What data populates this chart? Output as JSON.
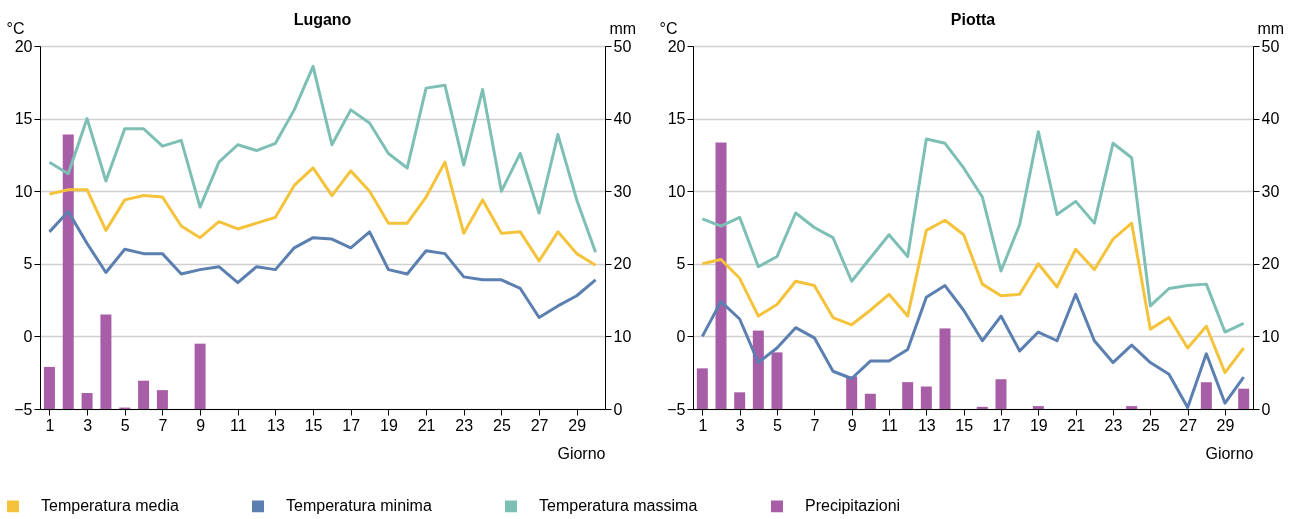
{
  "chart_data": [
    {
      "type": "line",
      "title": "Lugano",
      "xlabel": "Giorno",
      "ylabel": "°C",
      "y2label": "mm",
      "x": [
        1,
        2,
        3,
        4,
        5,
        6,
        7,
        8,
        9,
        10,
        11,
        12,
        13,
        14,
        15,
        16,
        17,
        18,
        19,
        20,
        21,
        22,
        23,
        24,
        25,
        26,
        27,
        28,
        29,
        30
      ],
      "xlim": [
        0.5,
        30.5
      ],
      "xticks": [
        1,
        3,
        5,
        7,
        9,
        11,
        13,
        15,
        17,
        19,
        21,
        23,
        25,
        27,
        29
      ],
      "ylim": [
        -5,
        20
      ],
      "yticks": [
        -5,
        0,
        5,
        10,
        15,
        20
      ],
      "y2lim": [
        0,
        50
      ],
      "y2ticks": [
        0,
        10,
        20,
        30,
        40,
        50
      ],
      "grid": "y",
      "legend": "bottom",
      "series": [
        {
          "name": "Temperatura media",
          "color": "#f5c33b",
          "values": [
            9.8,
            10.1,
            10.1,
            7.3,
            9.4,
            9.7,
            9.6,
            7.6,
            6.8,
            7.9,
            7.4,
            7.8,
            8.2,
            10.4,
            11.6,
            9.7,
            11.4,
            10.0,
            7.8,
            7.8,
            9.6,
            12.0,
            7.1,
            9.4,
            7.1,
            7.2,
            5.2,
            7.2,
            5.7,
            4.9
          ]
        },
        {
          "name": "Temperatura minima",
          "color": "#5b7fb0",
          "values": [
            7.2,
            8.6,
            6.4,
            4.4,
            6.0,
            5.7,
            5.7,
            4.3,
            4.6,
            4.8,
            3.7,
            4.8,
            4.6,
            6.1,
            6.8,
            6.7,
            6.1,
            7.2,
            4.6,
            4.3,
            5.9,
            5.7,
            4.1,
            3.9,
            3.9,
            3.3,
            1.3,
            2.1,
            2.8,
            3.9
          ]
        },
        {
          "name": "Temperatura massima",
          "color": "#7ebfb5",
          "values": [
            12.0,
            11.2,
            15.0,
            10.7,
            14.3,
            14.3,
            13.1,
            13.5,
            8.9,
            12.0,
            13.2,
            12.8,
            13.3,
            15.6,
            18.6,
            13.2,
            15.6,
            14.7,
            12.6,
            11.6,
            17.1,
            17.3,
            11.8,
            17.0,
            10.0,
            12.6,
            8.5,
            13.9,
            9.4,
            5.8
          ]
        },
        {
          "name": "Precipitazioni",
          "type": "bar",
          "axis": "y2",
          "color": "#a85ea7",
          "values": [
            5.8,
            37.8,
            2.2,
            13.0,
            0.2,
            3.9,
            2.6,
            0,
            9.0,
            0,
            0,
            0,
            0,
            0,
            0,
            0,
            0,
            0,
            0,
            0,
            0,
            0,
            0,
            0,
            0,
            0,
            0,
            0,
            0,
            0
          ]
        }
      ]
    },
    {
      "type": "line",
      "title": "Piotta",
      "xlabel": "Giorno",
      "ylabel": "°C",
      "y2label": "mm",
      "x": [
        1,
        2,
        3,
        4,
        5,
        6,
        7,
        8,
        9,
        10,
        11,
        12,
        13,
        14,
        15,
        16,
        17,
        18,
        19,
        20,
        21,
        22,
        23,
        24,
        25,
        26,
        27,
        28,
        29,
        30
      ],
      "xlim": [
        0.5,
        30.5
      ],
      "xticks": [
        1,
        3,
        5,
        7,
        9,
        11,
        13,
        15,
        17,
        19,
        21,
        23,
        25,
        27,
        29
      ],
      "ylim": [
        -5,
        20
      ],
      "yticks": [
        -5,
        0,
        5,
        10,
        15,
        20
      ],
      "y2lim": [
        0,
        50
      ],
      "y2ticks": [
        0,
        10,
        20,
        30,
        40,
        50
      ],
      "grid": "y",
      "series": [
        {
          "type": "bar",
          "axis": "y2",
          "color": "#a85ea7",
          "values": [
            5.6,
            36.7,
            2.3,
            10.8,
            7.8,
            0,
            0,
            0,
            4.5,
            2.1,
            0,
            3.7,
            3.1,
            11.1,
            0,
            0.3,
            4.1,
            0,
            0.4,
            0,
            0,
            0,
            0,
            0.4,
            0,
            0,
            0,
            3.7,
            0,
            2.8
          ]
        },
        {
          "color": "#f5c33b",
          "values": [
            5.0,
            5.3,
            4.0,
            1.4,
            2.2,
            3.8,
            3.5,
            1.3,
            0.8,
            1.8,
            2.9,
            1.4,
            7.3,
            8.0,
            7.0,
            3.6,
            2.8,
            2.9,
            5.0,
            3.4,
            6.0,
            4.6,
            6.7,
            7.8,
            0.5,
            1.3,
            -0.8,
            0.7,
            -2.5,
            -0.8
          ]
        },
        {
          "color": "#5b7fb0",
          "values": [
            0.0,
            2.4,
            1.2,
            -1.8,
            -0.8,
            0.6,
            -0.1,
            -2.4,
            -2.9,
            -1.7,
            -1.7,
            -0.9,
            2.7,
            3.5,
            1.8,
            -0.3,
            1.4,
            -1.0,
            0.3,
            -0.3,
            2.9,
            -0.3,
            -1.8,
            -0.6,
            -1.8,
            -2.6,
            -4.9,
            -1.2,
            -4.6,
            -2.8
          ]
        },
        {
          "color": "#7ebfb5",
          "values": [
            8.1,
            7.6,
            8.2,
            4.8,
            5.5,
            8.5,
            7.5,
            6.8,
            3.8,
            5.4,
            7.0,
            5.5,
            13.6,
            13.3,
            11.6,
            9.6,
            4.5,
            7.7,
            14.1,
            8.4,
            9.3,
            7.8,
            13.3,
            12.3,
            2.1,
            3.3,
            3.5,
            3.6,
            0.3,
            0.9
          ]
        }
      ]
    }
  ]
}
